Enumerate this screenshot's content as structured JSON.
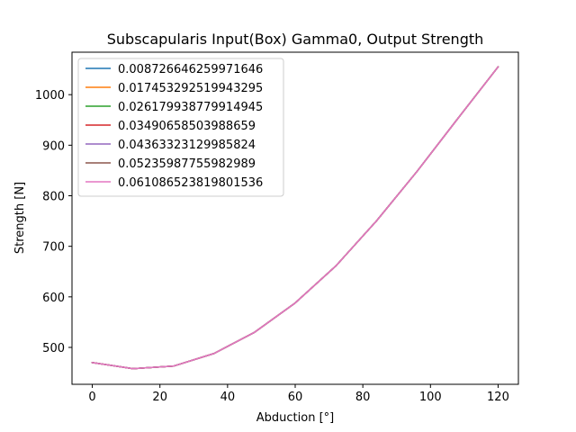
{
  "chart_data": {
    "type": "line",
    "title": "Subscapularis Input(Box) Gamma0, Output Strength",
    "xlabel": "Abduction [°]",
    "ylabel": "Strength [N]",
    "xlim": [
      -6,
      126
    ],
    "ylim": [
      427,
      1084
    ],
    "xticks": [
      0,
      20,
      40,
      60,
      80,
      100,
      120
    ],
    "yticks": [
      500,
      600,
      700,
      800,
      900,
      1000
    ],
    "grid": false,
    "legend_position": "top-left",
    "x": [
      0,
      12,
      24,
      36,
      48,
      60,
      72,
      84,
      96,
      108,
      120
    ],
    "series": [
      {
        "name": "0.008726646259971646",
        "color": "#1f77b4",
        "values": [
          470,
          458,
          463,
          488,
          530,
          588,
          661,
          750,
          848,
          952,
          1055
        ]
      },
      {
        "name": "0.017453292519943295",
        "color": "#ff7f0e",
        "values": [
          470,
          458,
          463,
          488,
          530,
          588,
          661,
          750,
          848,
          952,
          1055
        ]
      },
      {
        "name": "0.026179938779914945",
        "color": "#2ca02c",
        "values": [
          470,
          458,
          463,
          488,
          530,
          588,
          661,
          750,
          848,
          952,
          1055
        ]
      },
      {
        "name": "0.03490658503988659",
        "color": "#d62728",
        "values": [
          470,
          458,
          463,
          488,
          530,
          588,
          661,
          750,
          848,
          952,
          1055
        ]
      },
      {
        "name": "0.04363323129985824",
        "color": "#9467bd",
        "values": [
          470,
          458,
          463,
          488,
          530,
          588,
          661,
          750,
          848,
          952,
          1055
        ]
      },
      {
        "name": "0.05235987755982989",
        "color": "#8c564b",
        "values": [
          470,
          458,
          463,
          488,
          530,
          588,
          661,
          750,
          848,
          952,
          1055
        ]
      },
      {
        "name": "0.061086523819801536",
        "color": "#e377c2",
        "values": [
          470,
          458,
          463,
          488,
          530,
          588,
          661,
          750,
          848,
          952,
          1055
        ]
      }
    ]
  }
}
